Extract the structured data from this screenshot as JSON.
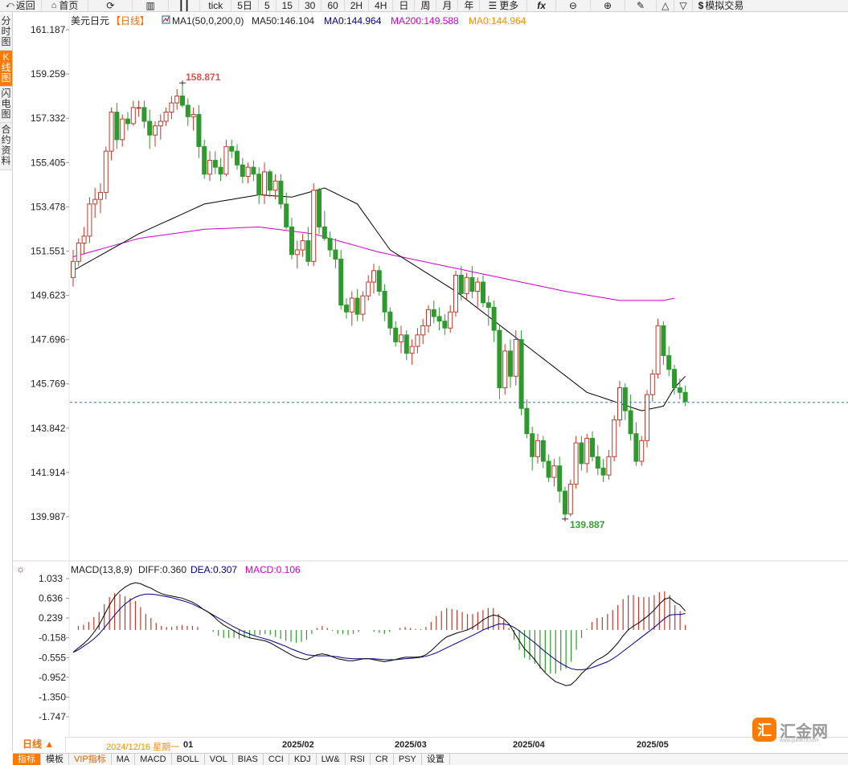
{
  "toolbar": {
    "back": "返回",
    "home": "首页",
    "tick": "tick",
    "day5": "5日",
    "p5": "5",
    "p15": "15",
    "p30": "30",
    "p60": "60",
    "p2h": "2H",
    "p4h": "4H",
    "day": "日",
    "week": "周",
    "month": "月",
    "year": "年",
    "more": "更多",
    "fx": "fx",
    "sim": "模拟交易"
  },
  "side_tabs": [
    "分时图",
    "K线图",
    "闪电图",
    "合约资料"
  ],
  "main_legend": {
    "symbol": "美元日元",
    "period": "【日线】",
    "indicator": "MA1(50,0,200,0)",
    "ma50": "MA50:146.104",
    "ma0a": "MA0:144.964",
    "ma200": "MA200:149.588",
    "ma0b": "MA0:144.964"
  },
  "macd_legend": {
    "name": "MACD(13,8,9)",
    "diff": "DIFF:0.360",
    "dea": "DEA:0.307",
    "macd": "MACD:0.106"
  },
  "price_axis": [
    "161.187",
    "159.259",
    "157.332",
    "155.405",
    "153.478",
    "151.551",
    "149.623",
    "147.696",
    "145.769",
    "143.842",
    "141.914",
    "139.987"
  ],
  "macd_axis": [
    "1.033",
    "0.636",
    "0.239",
    "-0.158",
    "-0.555",
    "-0.952",
    "-1.350",
    "-1.747"
  ],
  "annotations": {
    "high": "158.871",
    "low": "139.887"
  },
  "date_bar": {
    "period_button": "日线 ▲",
    "cursor_date": "2024/12/16 星期一",
    "first": "01",
    "months": [
      "2025/02",
      "2025/03",
      "2025/04",
      "2025/05"
    ]
  },
  "bottom_tabs": [
    "指标",
    "模板",
    "VIP指标",
    "MA",
    "MACD",
    "BOLL",
    "VOL",
    "BIAS",
    "CCI",
    "KDJ",
    "LW&",
    "RSI",
    "CR",
    "PSY",
    "设置"
  ],
  "logo": {
    "badge": "汇",
    "text": "汇金网",
    "url": "www.gold678.com"
  },
  "colors": {
    "up": "#c0392b",
    "down": "#2e9a2e",
    "ma50": "#000000",
    "ma200": "#cc00cc",
    "diff": "#000000",
    "dea": "#00008b",
    "accent": "#ff7a00"
  },
  "chart_data": {
    "type": "candlestick",
    "y_range": [
      139.0,
      161.6
    ],
    "current_price": 144.964,
    "candles_ohlc": [
      [
        150.4,
        151.6,
        150.0,
        151.1
      ],
      [
        151.1,
        152.1,
        150.9,
        151.9
      ],
      [
        151.9,
        152.6,
        151.4,
        152.2
      ],
      [
        152.2,
        153.9,
        151.9,
        153.6
      ],
      [
        153.6,
        154.3,
        153.0,
        153.8
      ],
      [
        153.8,
        154.5,
        153.2,
        154.1
      ],
      [
        154.1,
        156.1,
        153.8,
        155.9
      ],
      [
        155.9,
        157.8,
        155.5,
        157.6
      ],
      [
        157.6,
        158.0,
        156.0,
        156.4
      ],
      [
        156.4,
        157.5,
        156.1,
        157.3
      ],
      [
        157.3,
        157.6,
        156.8,
        157.1
      ],
      [
        157.1,
        158.1,
        157.0,
        157.8
      ],
      [
        157.8,
        158.1,
        157.4,
        157.8
      ],
      [
        157.8,
        158.1,
        156.9,
        157.2
      ],
      [
        157.2,
        157.7,
        156.0,
        156.6
      ],
      [
        156.6,
        157.2,
        156.1,
        157.0
      ],
      [
        157.0,
        157.5,
        156.4,
        157.2
      ],
      [
        157.2,
        157.8,
        157.0,
        157.6
      ],
      [
        157.6,
        158.3,
        157.3,
        158.0
      ],
      [
        158.0,
        158.6,
        157.7,
        158.3
      ],
      [
        158.3,
        158.9,
        157.8,
        157.9
      ],
      [
        157.9,
        158.2,
        157.0,
        157.4
      ],
      [
        157.4,
        157.8,
        156.8,
        157.5
      ],
      [
        157.5,
        157.9,
        155.6,
        156.1
      ],
      [
        156.1,
        156.4,
        154.7,
        154.9
      ],
      [
        154.9,
        155.9,
        154.6,
        155.5
      ],
      [
        155.5,
        155.9,
        154.9,
        155.2
      ],
      [
        155.2,
        155.6,
        154.6,
        154.9
      ],
      [
        154.9,
        156.4,
        154.8,
        156.1
      ],
      [
        156.1,
        156.4,
        155.6,
        155.9
      ],
      [
        155.9,
        156.2,
        155.1,
        155.3
      ],
      [
        155.3,
        155.6,
        154.5,
        154.8
      ],
      [
        154.8,
        155.4,
        154.5,
        155.2
      ],
      [
        155.2,
        155.5,
        154.6,
        154.9
      ],
      [
        154.9,
        155.2,
        153.6,
        154.0
      ],
      [
        154.0,
        155.4,
        153.6,
        155.0
      ],
      [
        155.0,
        155.1,
        153.9,
        154.2
      ],
      [
        154.2,
        154.9,
        153.8,
        154.6
      ],
      [
        154.6,
        154.9,
        153.4,
        153.6
      ],
      [
        153.6,
        154.1,
        152.5,
        152.6
      ],
      [
        152.6,
        153.0,
        151.2,
        151.4
      ],
      [
        151.4,
        152.0,
        150.8,
        151.6
      ],
      [
        151.6,
        152.3,
        151.3,
        152.0
      ],
      [
        152.0,
        152.6,
        150.9,
        151.1
      ],
      [
        151.1,
        154.5,
        150.9,
        154.2
      ],
      [
        154.2,
        154.3,
        152.3,
        152.6
      ],
      [
        152.6,
        153.3,
        152.0,
        152.1
      ],
      [
        152.1,
        152.4,
        151.3,
        151.6
      ],
      [
        151.6,
        152.1,
        150.8,
        151.2
      ],
      [
        151.2,
        151.6,
        149.0,
        149.2
      ],
      [
        149.2,
        149.5,
        148.6,
        148.9
      ],
      [
        148.9,
        149.8,
        148.3,
        149.5
      ],
      [
        149.5,
        149.9,
        148.5,
        148.8
      ],
      [
        148.8,
        149.8,
        148.5,
        149.6
      ],
      [
        149.6,
        150.5,
        149.4,
        150.2
      ],
      [
        150.2,
        151.0,
        149.7,
        150.7
      ],
      [
        150.7,
        150.9,
        149.6,
        149.8
      ],
      [
        149.8,
        150.1,
        148.5,
        148.9
      ],
      [
        148.9,
        149.1,
        147.9,
        148.2
      ],
      [
        148.2,
        148.5,
        147.4,
        147.6
      ],
      [
        147.6,
        148.3,
        147.1,
        147.9
      ],
      [
        147.9,
        148.1,
        146.8,
        147.1
      ],
      [
        147.1,
        147.7,
        146.6,
        147.4
      ],
      [
        147.4,
        148.2,
        147.1,
        147.9
      ],
      [
        147.9,
        148.6,
        147.5,
        148.3
      ],
      [
        148.3,
        149.2,
        148.0,
        149.0
      ],
      [
        149.0,
        149.4,
        148.4,
        148.7
      ],
      [
        148.7,
        149.1,
        148.1,
        148.5
      ],
      [
        148.5,
        148.8,
        147.9,
        148.2
      ],
      [
        148.2,
        149.2,
        148.0,
        148.9
      ],
      [
        148.9,
        150.7,
        148.7,
        150.5
      ],
      [
        150.5,
        150.9,
        149.4,
        149.7
      ],
      [
        149.7,
        150.6,
        149.4,
        150.4
      ],
      [
        150.4,
        150.9,
        149.5,
        149.8
      ],
      [
        149.8,
        150.4,
        149.1,
        150.2
      ],
      [
        150.2,
        150.5,
        149.1,
        149.3
      ],
      [
        149.3,
        149.6,
        148.3,
        149.1
      ],
      [
        149.1,
        149.4,
        147.6,
        148.1
      ],
      [
        148.1,
        148.3,
        145.1,
        145.6
      ],
      [
        145.6,
        147.5,
        145.3,
        147.2
      ],
      [
        147.2,
        147.7,
        145.6,
        146.1
      ],
      [
        146.1,
        148.1,
        145.7,
        147.7
      ],
      [
        147.7,
        148.1,
        144.4,
        144.7
      ],
      [
        144.7,
        145.1,
        143.4,
        143.6
      ],
      [
        143.6,
        143.9,
        142.0,
        142.6
      ],
      [
        142.6,
        143.6,
        142.3,
        143.3
      ],
      [
        143.3,
        143.5,
        142.1,
        142.4
      ],
      [
        142.4,
        142.7,
        141.5,
        141.7
      ],
      [
        141.7,
        142.5,
        141.3,
        142.2
      ],
      [
        142.2,
        142.6,
        140.6,
        141.1
      ],
      [
        141.1,
        141.3,
        139.9,
        140.1
      ],
      [
        140.1,
        141.6,
        140.0,
        141.4
      ],
      [
        141.4,
        143.5,
        141.2,
        143.2
      ],
      [
        143.2,
        143.5,
        142.0,
        142.3
      ],
      [
        142.3,
        143.6,
        141.9,
        143.4
      ],
      [
        143.4,
        143.7,
        142.4,
        142.6
      ],
      [
        142.6,
        143.1,
        141.8,
        142.1
      ],
      [
        142.1,
        142.5,
        141.5,
        141.8
      ],
      [
        141.8,
        142.9,
        141.6,
        142.6
      ],
      [
        142.6,
        144.4,
        142.4,
        144.2
      ],
      [
        144.2,
        145.9,
        143.9,
        145.6
      ],
      [
        145.6,
        145.8,
        144.2,
        144.6
      ],
      [
        144.6,
        145.3,
        143.3,
        143.6
      ],
      [
        143.6,
        144.1,
        142.2,
        142.4
      ],
      [
        142.4,
        143.5,
        142.2,
        143.3
      ],
      [
        143.3,
        145.5,
        143.0,
        145.3
      ],
      [
        145.3,
        146.4,
        145.0,
        146.2
      ],
      [
        146.2,
        148.6,
        146.0,
        148.3
      ],
      [
        148.3,
        148.5,
        146.6,
        147.0
      ],
      [
        147.0,
        147.4,
        146.1,
        146.4
      ],
      [
        146.4,
        146.6,
        145.3,
        145.6
      ],
      [
        145.6,
        146.0,
        145.1,
        145.4
      ],
      [
        145.4,
        145.7,
        144.8,
        145.0
      ]
    ],
    "ma50_anchors": [
      [
        0,
        150.7
      ],
      [
        12,
        152.3
      ],
      [
        24,
        153.6
      ],
      [
        34,
        154.0
      ],
      [
        40,
        153.9
      ],
      [
        46,
        154.3
      ],
      [
        52,
        153.6
      ],
      [
        58,
        151.6
      ],
      [
        70,
        149.8
      ],
      [
        82,
        147.6
      ],
      [
        94,
        145.4
      ],
      [
        104,
        144.6
      ],
      [
        108,
        144.8
      ],
      [
        110,
        145.6
      ],
      [
        112,
        146.1
      ]
    ],
    "ma200_anchors": [
      [
        0,
        151.3
      ],
      [
        12,
        152.1
      ],
      [
        24,
        152.5
      ],
      [
        34,
        152.6
      ],
      [
        44,
        152.3
      ],
      [
        56,
        151.5
      ],
      [
        70,
        150.8
      ],
      [
        80,
        150.3
      ],
      [
        90,
        149.8
      ],
      [
        100,
        149.4
      ],
      [
        108,
        149.4
      ],
      [
        110,
        149.5
      ]
    ],
    "macd": {
      "range": [
        -1.9,
        1.12
      ],
      "diff": [
        -0.45,
        -0.36,
        -0.28,
        -0.18,
        -0.05,
        0.1,
        0.3,
        0.5,
        0.67,
        0.78,
        0.86,
        0.92,
        0.95,
        0.93,
        0.88,
        0.84,
        0.78,
        0.73,
        0.7,
        0.68,
        0.66,
        0.64,
        0.6,
        0.56,
        0.5,
        0.42,
        0.36,
        0.28,
        0.18,
        0.1,
        0.04,
        -0.02,
        -0.08,
        -0.12,
        -0.16,
        -0.18,
        -0.2,
        -0.22,
        -0.26,
        -0.32,
        -0.38,
        -0.44,
        -0.5,
        -0.55,
        -0.58,
        -0.6,
        -0.55,
        -0.5,
        -0.48,
        -0.5,
        -0.54,
        -0.58,
        -0.6,
        -0.62,
        -0.62,
        -0.6,
        -0.58,
        -0.58,
        -0.6,
        -0.62,
        -0.64,
        -0.62,
        -0.6,
        -0.57,
        -0.55,
        -0.55,
        -0.55,
        -0.54,
        -0.5,
        -0.42,
        -0.32,
        -0.22,
        -0.14,
        -0.1,
        -0.06,
        -0.03,
        0.0,
        0.05,
        0.12,
        0.2,
        0.26,
        0.3,
        0.28,
        0.22,
        0.12,
        -0.05,
        -0.22,
        -0.38,
        -0.48,
        -0.6,
        -0.74,
        -0.86,
        -0.96,
        -1.04,
        -1.08,
        -1.12,
        -1.1,
        -1.0,
        -0.88,
        -0.78,
        -0.68,
        -0.6,
        -0.55,
        -0.48,
        -0.38,
        -0.26,
        -0.12,
        0.0,
        0.08,
        0.14,
        0.22,
        0.3,
        0.4,
        0.52,
        0.62,
        0.65,
        0.56,
        0.5,
        0.38
      ],
      "dea": [
        -0.45,
        -0.4,
        -0.33,
        -0.26,
        -0.18,
        -0.08,
        0.04,
        0.17,
        0.3,
        0.42,
        0.52,
        0.6,
        0.66,
        0.7,
        0.72,
        0.72,
        0.71,
        0.69,
        0.67,
        0.65,
        0.62,
        0.59,
        0.56,
        0.52,
        0.47,
        0.42,
        0.36,
        0.3,
        0.24,
        0.18,
        0.12,
        0.06,
        0.01,
        -0.04,
        -0.08,
        -0.12,
        -0.15,
        -0.18,
        -0.21,
        -0.25,
        -0.29,
        -0.33,
        -0.38,
        -0.42,
        -0.46,
        -0.5,
        -0.51,
        -0.52,
        -0.52,
        -0.52,
        -0.53,
        -0.54,
        -0.56,
        -0.57,
        -0.58,
        -0.58,
        -0.58,
        -0.58,
        -0.58,
        -0.59,
        -0.6,
        -0.6,
        -0.6,
        -0.59,
        -0.58,
        -0.57,
        -0.56,
        -0.55,
        -0.53,
        -0.5,
        -0.46,
        -0.41,
        -0.36,
        -0.31,
        -0.26,
        -0.21,
        -0.16,
        -0.11,
        -0.06,
        0.0,
        0.04,
        0.08,
        0.12,
        0.12,
        0.1,
        0.05,
        -0.02,
        -0.1,
        -0.18,
        -0.26,
        -0.35,
        -0.44,
        -0.52,
        -0.6,
        -0.67,
        -0.73,
        -0.78,
        -0.8,
        -0.8,
        -0.79,
        -0.76,
        -0.72,
        -0.68,
        -0.64,
        -0.58,
        -0.51,
        -0.43,
        -0.35,
        -0.27,
        -0.19,
        -0.11,
        -0.03,
        0.05,
        0.14,
        0.23,
        0.3,
        0.31,
        0.31,
        0.33
      ]
    }
  }
}
